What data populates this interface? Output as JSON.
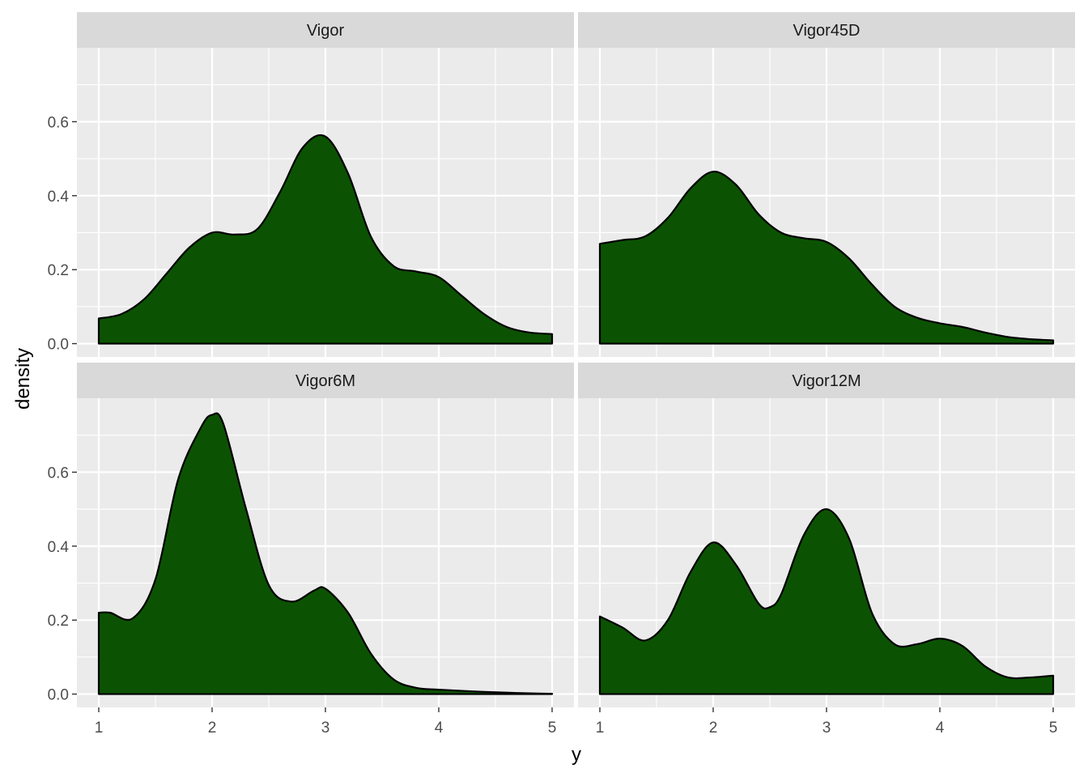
{
  "chart_data": {
    "type": "area",
    "xlabel": "y",
    "ylabel": "density",
    "xlim": [
      1,
      5
    ],
    "ylim": [
      0,
      0.8
    ],
    "x_ticks": [
      1,
      2,
      3,
      4,
      5
    ],
    "y_ticks": [
      0.0,
      0.2,
      0.4,
      0.6
    ],
    "y_tick_labels": [
      "0.0",
      "0.2",
      "0.4",
      "0.6"
    ],
    "x_tick_labels": [
      "1",
      "2",
      "3",
      "4",
      "5"
    ],
    "fill_color": "#0B5302",
    "outline_color": "#000000",
    "grid": true,
    "layout": "2x2 facets",
    "panels": [
      {
        "name": "Vigor",
        "x": [
          1.0,
          1.2,
          1.4,
          1.6,
          1.8,
          2.0,
          2.2,
          2.4,
          2.6,
          2.8,
          3.0,
          3.2,
          3.4,
          3.6,
          3.8,
          4.0,
          4.2,
          4.4,
          4.6,
          4.8,
          5.0
        ],
        "y": [
          0.068,
          0.08,
          0.12,
          0.19,
          0.26,
          0.3,
          0.295,
          0.31,
          0.41,
          0.53,
          0.56,
          0.46,
          0.29,
          0.21,
          0.195,
          0.18,
          0.13,
          0.08,
          0.045,
          0.03,
          0.026
        ]
      },
      {
        "name": "Vigor45D",
        "x": [
          1.0,
          1.2,
          1.4,
          1.6,
          1.8,
          2.0,
          2.2,
          2.4,
          2.6,
          2.8,
          3.0,
          3.2,
          3.4,
          3.6,
          3.8,
          4.0,
          4.2,
          4.4,
          4.6,
          4.8,
          5.0
        ],
        "y": [
          0.27,
          0.28,
          0.29,
          0.34,
          0.42,
          0.465,
          0.43,
          0.35,
          0.3,
          0.285,
          0.275,
          0.23,
          0.16,
          0.1,
          0.07,
          0.055,
          0.045,
          0.03,
          0.018,
          0.012,
          0.009
        ]
      },
      {
        "name": "Vigor6M",
        "x": [
          1.0,
          1.1,
          1.3,
          1.5,
          1.7,
          1.9,
          2.0,
          2.1,
          2.3,
          2.5,
          2.7,
          2.9,
          3.0,
          3.2,
          3.4,
          3.6,
          3.8,
          4.0,
          4.4,
          4.8,
          5.0
        ],
        "y": [
          0.22,
          0.22,
          0.205,
          0.31,
          0.58,
          0.72,
          0.755,
          0.73,
          0.5,
          0.295,
          0.25,
          0.28,
          0.285,
          0.22,
          0.11,
          0.04,
          0.017,
          0.012,
          0.006,
          0.002,
          0.001
        ]
      },
      {
        "name": "Vigor12M",
        "x": [
          1.0,
          1.2,
          1.4,
          1.6,
          1.8,
          2.0,
          2.2,
          2.4,
          2.5,
          2.6,
          2.8,
          3.0,
          3.2,
          3.4,
          3.6,
          3.8,
          4.0,
          4.2,
          4.4,
          4.6,
          4.8,
          5.0
        ],
        "y": [
          0.21,
          0.18,
          0.145,
          0.2,
          0.33,
          0.41,
          0.35,
          0.245,
          0.235,
          0.27,
          0.43,
          0.5,
          0.42,
          0.22,
          0.135,
          0.135,
          0.15,
          0.13,
          0.075,
          0.045,
          0.045,
          0.05
        ]
      }
    ]
  }
}
